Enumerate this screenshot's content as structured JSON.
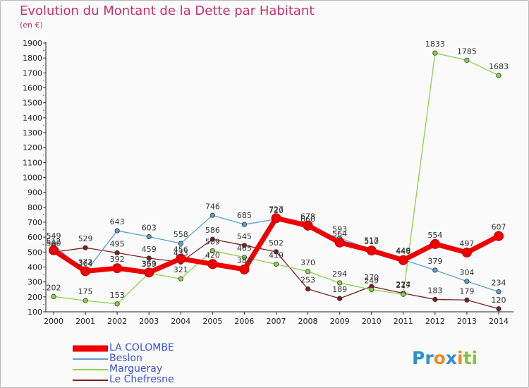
{
  "title": "Evolution du Montant de la Dette par Habitant",
  "unit": "(en €)",
  "logo": "Proxiti",
  "chart_data": {
    "type": "line",
    "x": [
      "2000",
      "2001",
      "2002",
      "2003",
      "2004",
      "2005",
      "2006",
      "2007",
      "2008",
      "2009",
      "2010",
      "2011",
      "2012",
      "2013",
      "2014"
    ],
    "ylim": [
      100,
      1900
    ],
    "yticks": [
      100,
      200,
      300,
      400,
      500,
      600,
      700,
      800,
      900,
      1000,
      1100,
      1200,
      1300,
      1400,
      1500,
      1600,
      1700,
      1800,
      1900
    ],
    "grid": false,
    "legend_position": "bottom-left",
    "series": [
      {
        "name": "LA COLOMBE",
        "color": "#ee0000",
        "values": [
          512,
          372,
          392,
          363,
          456,
          420,
          384,
          727,
          678,
          564,
          510,
          446,
          554,
          497,
          607
        ]
      },
      {
        "name": "Beslon",
        "color": "#5e9ed3",
        "values": [
          549,
          364,
          643,
          603,
          558,
          746,
          685,
          720,
          660,
          593,
          517,
          449,
          379,
          304,
          234
        ]
      },
      {
        "name": "Margueray",
        "color": "#8ad24d",
        "values": [
          202,
          175,
          153,
          359,
          321,
          509,
          465,
          419,
          370,
          294,
          249,
          217,
          1833,
          1785,
          1683
        ]
      },
      {
        "name": "Le Chefresne",
        "color": "#7b2020",
        "values": [
          500,
          529,
          495,
          459,
          433,
          586,
          545,
          502,
          253,
          189,
          270,
          224,
          183,
          179,
          120
        ]
      }
    ]
  }
}
